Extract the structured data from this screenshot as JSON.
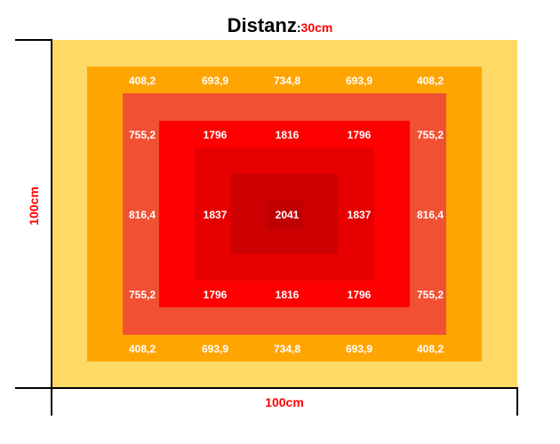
{
  "title": {
    "main": "Distanz",
    "separator": ":",
    "value": "30cm"
  },
  "axes": {
    "x_label": "100cm",
    "y_label": "100cm"
  },
  "colors": {
    "zone1": "#FFD966",
    "zone2": "#FFA502",
    "zone3": "#F15033",
    "zone4": "#FF0000",
    "zone5": "#E60000",
    "zone6": "#CC0000",
    "zone7": "#C00000",
    "label": "#FF0000"
  },
  "grid": [
    [
      "408,2",
      "693,9",
      "734,8",
      "693,9",
      "408,2"
    ],
    [
      "755,2",
      "1796",
      "1816",
      "1796",
      "755,2"
    ],
    [
      "816,4",
      "1837",
      "2041",
      "1837",
      "816,4"
    ],
    [
      "755,2",
      "1796",
      "1816",
      "1796",
      "755,2"
    ],
    [
      "408,2",
      "693,9",
      "734,8",
      "693,9",
      "408,2"
    ]
  ]
}
